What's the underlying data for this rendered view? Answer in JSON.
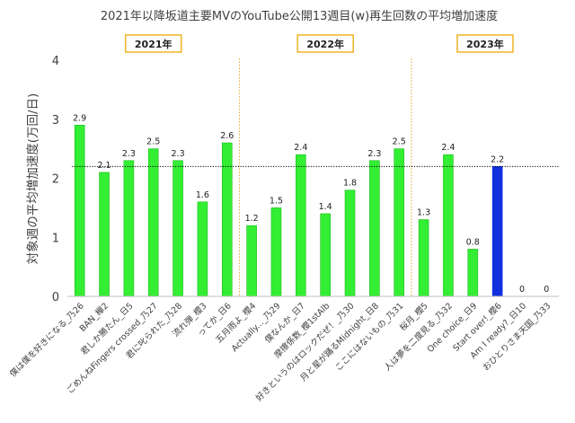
{
  "chart_data": {
    "type": "bar",
    "title": "2021年以降坂道主要MVのYouTube公開13週目(w)再生回数の平均増加速度",
    "ylabel": "対象週の平均増加速度(万回/日)",
    "xlabel": "",
    "ylim": [
      0,
      4
    ],
    "yticks": [
      0,
      1,
      2,
      3,
      4
    ],
    "grid": false,
    "legend": "none",
    "average_line": 2.2,
    "categories": [
      "僕は僕を好きになる_乃26",
      "BAN_欅2",
      "君しか勝たん_日5",
      "ごめんねFingers crossed_乃27",
      "君に叱られた_乃28",
      "流れ弾_櫻3",
      "ってか_日6",
      "五月雨よ_櫻4",
      "Actually..._乃29",
      "僕なんか_日7",
      "摩擦係数_櫻1stAlb",
      "好きというのはロックだぜ！_乃30",
      "月と星が踊るMidnight_日8",
      "ここにはないもの_乃31",
      "桜月_櫻5",
      "人は夢を二度見る_乃32",
      "One choice_日9",
      "Start over!_櫻6",
      "Am I ready?_日10",
      "おひとりさま天国_乃33"
    ],
    "values": [
      2.9,
      2.1,
      2.3,
      2.5,
      2.3,
      1.6,
      2.6,
      1.2,
      1.5,
      2.4,
      1.4,
      1.8,
      2.3,
      2.5,
      1.3,
      2.4,
      0.8,
      2.2,
      0,
      0
    ],
    "data_labels": [
      "2.9",
      "2.1",
      "2.3",
      "2.5",
      "2.3",
      "1.6",
      "2.6",
      "1.2",
      "1.5",
      "2.4",
      "1.4",
      "1.8",
      "2.3",
      "2.5",
      "1.3",
      "2.4",
      "0.8",
      "2.2",
      "0",
      "0"
    ],
    "highlight_index": 17,
    "year_groups": [
      {
        "label": "2021年",
        "start": 0,
        "end": 6
      },
      {
        "label": "2022年",
        "start": 7,
        "end": 13
      },
      {
        "label": "2023年",
        "start": 14,
        "end": 19
      }
    ],
    "colors": {
      "bar": "#33ee33",
      "bar_stroke": "#22bb22",
      "highlight": "#1030dd",
      "separator": "#e6a52e",
      "year_box_border": "#f0b323",
      "average_line": "#000000",
      "text": "#404040",
      "axis": "#bfbfbf"
    }
  }
}
